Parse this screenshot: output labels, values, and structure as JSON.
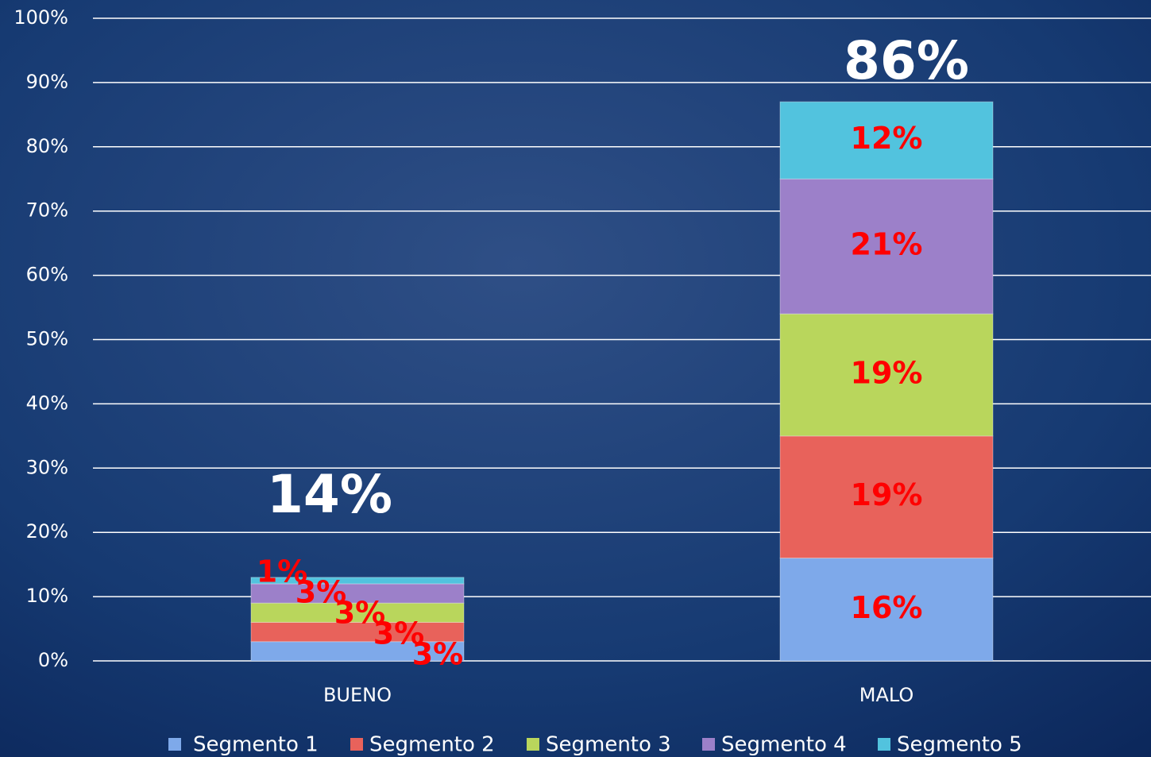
{
  "chart_data": {
    "type": "stacked_bar",
    "categories": [
      "BUENO",
      "MALO"
    ],
    "series": [
      {
        "name": "Segmento 1",
        "color": "#7ea9ea",
        "values": [
          3,
          16
        ],
        "value_labels": [
          "3%",
          "16%"
        ]
      },
      {
        "name": "Segmento 2",
        "color": "#e8625b",
        "values": [
          3,
          19
        ],
        "value_labels": [
          "3%",
          "19%"
        ]
      },
      {
        "name": "Segmento 3",
        "color": "#b9d65c",
        "values": [
          3,
          19
        ],
        "value_labels": [
          "3%",
          "19%"
        ]
      },
      {
        "name": "Segmento 4",
        "color": "#9c80c9",
        "values": [
          3,
          21
        ],
        "value_labels": [
          "3%",
          "21%"
        ]
      },
      {
        "name": "Segmento 5",
        "color": "#52c3de",
        "values": [
          1,
          12
        ],
        "value_labels": [
          "1%",
          "12%"
        ]
      }
    ],
    "total_labels": [
      "14%",
      "86%"
    ],
    "ylim": [
      0,
      100
    ],
    "yticks": [
      {
        "value": 0,
        "label": "0%"
      },
      {
        "value": 10,
        "label": "10%"
      },
      {
        "value": 20,
        "label": "20%"
      },
      {
        "value": 30,
        "label": "30%"
      },
      {
        "value": 40,
        "label": "40%"
      },
      {
        "value": 50,
        "label": "50%"
      },
      {
        "value": 60,
        "label": "60%"
      },
      {
        "value": 70,
        "label": "70%"
      },
      {
        "value": 80,
        "label": "80%"
      },
      {
        "value": 90,
        "label": "90%"
      },
      {
        "value": 100,
        "label": "100%"
      }
    ],
    "grid": true,
    "legend": "bottom"
  }
}
